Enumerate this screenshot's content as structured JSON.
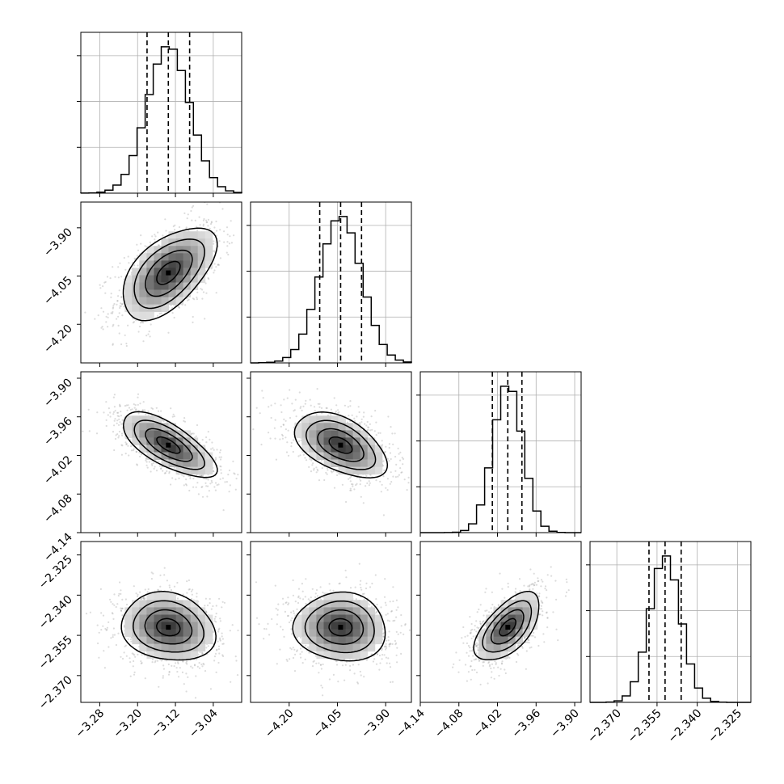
{
  "chart_data": {
    "type": "corner",
    "grid": true,
    "colors": {
      "line": "#000000",
      "grid": "#b0b0b0",
      "scatter": "#9a9a9a"
    },
    "quantiles": [
      0.16,
      0.5,
      0.84
    ],
    "parameters": [
      {
        "range": [
          -3.32,
          -2.98
        ],
        "ticks": [
          -3.28,
          -3.2,
          -3.12,
          -3.04
        ],
        "tick_labels": [
          "−3.28",
          "−3.20",
          "−3.12",
          "−3.04"
        ],
        "mean": -3.135,
        "std": 0.045,
        "quantile_values": [
          -3.18,
          -3.135,
          -3.09
        ]
      },
      {
        "range": [
          -4.32,
          -3.82
        ],
        "ticks": [
          -4.2,
          -4.05,
          -3.9
        ],
        "tick_labels": [
          "−4.20",
          "−4.05",
          "−3.90"
        ],
        "mean": -4.04,
        "std": 0.065,
        "quantile_values": [
          -4.105,
          -4.04,
          -3.975
        ]
      },
      {
        "range": [
          -4.14,
          -3.89
        ],
        "ticks": [
          -4.14,
          -4.08,
          -4.02,
          -3.96,
          -3.9
        ],
        "tick_labels": [
          "−4.14",
          "−4.08",
          "−4.02",
          "−3.96",
          "−3.90"
        ],
        "mean": -4.004,
        "std": 0.023,
        "quantile_values": [
          -4.028,
          -4.004,
          -3.982
        ]
      },
      {
        "range": [
          -2.38,
          -2.32
        ],
        "ticks": [
          -2.37,
          -2.355,
          -2.34,
          -2.325
        ],
        "tick_labels": [
          "−2.370",
          "−2.355",
          "−2.340",
          "−2.325"
        ],
        "mean": -2.352,
        "std": 0.0058,
        "quantile_values": [
          -2.358,
          -2.352,
          -2.346
        ]
      }
    ],
    "correlations": [
      {
        "pair": [
          0,
          1
        ],
        "rho": 0.55
      },
      {
        "pair": [
          0,
          2
        ],
        "rho": -0.7
      },
      {
        "pair": [
          1,
          2
        ],
        "rho": -0.5
      },
      {
        "pair": [
          0,
          3
        ],
        "rho": -0.15
      },
      {
        "pair": [
          1,
          3
        ],
        "rho": -0.05
      },
      {
        "pair": [
          2,
          3
        ],
        "rho": 0.6
      }
    ],
    "contour_levels_sigma": [
      0.5,
      1.0,
      1.5,
      2.0
    ]
  }
}
